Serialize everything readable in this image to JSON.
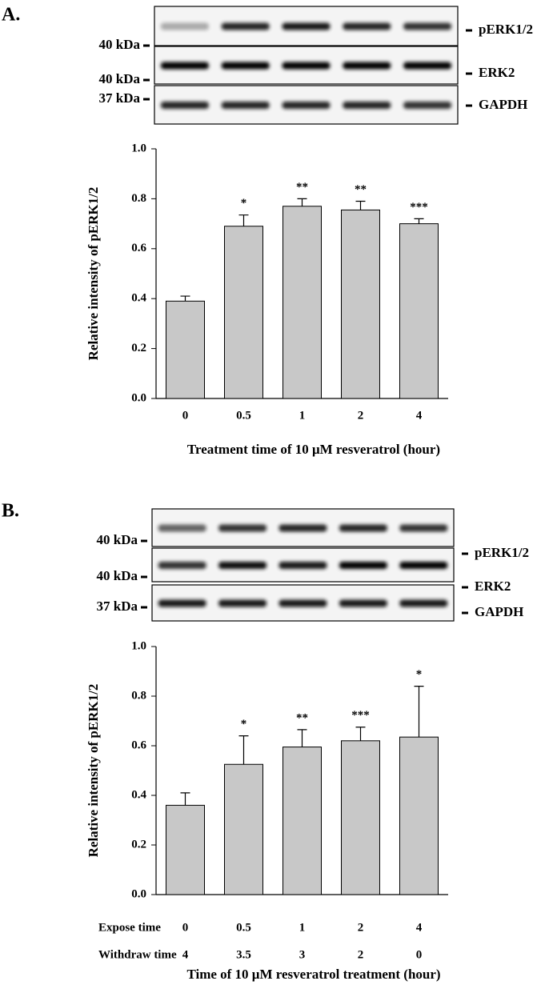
{
  "chart_data": [
    {
      "type": "bar",
      "panel_label": "A.",
      "blot": {
        "markers": [
          "40 kDa",
          "40 kDa",
          "37 kDa"
        ],
        "bands": [
          "pERK1/2",
          "ERK2",
          "GAPDH"
        ]
      },
      "categories": [
        "0",
        "0.5",
        "1",
        "2",
        "4"
      ],
      "values": [
        0.39,
        0.69,
        0.77,
        0.755,
        0.7
      ],
      "errors": [
        0.02,
        0.045,
        0.03,
        0.035,
        0.02
      ],
      "annotations": [
        null,
        "*",
        "**",
        "**",
        "***"
      ],
      "color": "#c8c8c8",
      "ylim": [
        0,
        1
      ],
      "yticks": [
        {
          "value": 0,
          "label": "0.0"
        },
        0.2,
        0.4,
        0.6,
        0.8,
        {
          "value": 1,
          "label": "1.0"
        }
      ],
      "ylabel": "Relative intensity of pERK1/2",
      "xlabel": "Treatment time of 10 μM resveratrol (hour)"
    },
    {
      "type": "bar",
      "panel_label": "B.",
      "blot": {
        "markers": [
          "40 kDa",
          "40 kDa",
          "37 kDa"
        ],
        "bands": [
          "pERK1/2",
          "ERK2",
          "GAPDH"
        ]
      },
      "categories": [
        "0",
        "0.5",
        "1",
        "2",
        "4"
      ],
      "category_rows": [
        {
          "name": "Expose time",
          "labels": [
            "0",
            "0.5",
            "1",
            "2",
            "4"
          ]
        },
        {
          "name": "Withdraw time",
          "labels": [
            "4",
            "3.5",
            "3",
            "2",
            "0"
          ]
        }
      ],
      "values": [
        0.36,
        0.525,
        0.595,
        0.62,
        0.635
      ],
      "errors": [
        0.05,
        0.115,
        0.07,
        0.055,
        0.205
      ],
      "annotations": [
        null,
        "*",
        "**",
        "***",
        "*"
      ],
      "color": "#c8c8c8",
      "ylim": [
        0,
        1
      ],
      "yticks": [
        {
          "value": 0,
          "label": "0.0"
        },
        0.2,
        0.4,
        0.6,
        0.8,
        {
          "value": 1,
          "label": "1.0"
        }
      ],
      "ylabel": "Relative intensity of pERK1/2",
      "xlabel": "Time of 10 μM resveratrol treatment (hour)"
    }
  ]
}
